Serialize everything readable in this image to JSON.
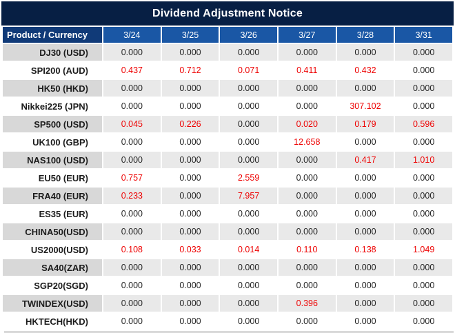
{
  "title": "Dividend Adjustment Notice",
  "table": {
    "product_header": "Product / Currency",
    "date_headers": [
      "3/24",
      "3/25",
      "3/26",
      "3/27",
      "3/28",
      "3/31"
    ],
    "rows": [
      {
        "product": "DJ30 (USD)",
        "cells": [
          {
            "v": "0.000",
            "red": false
          },
          {
            "v": "0.000",
            "red": false
          },
          {
            "v": "0.000",
            "red": false
          },
          {
            "v": "0.000",
            "red": false
          },
          {
            "v": "0.000",
            "red": false
          },
          {
            "v": "0.000",
            "red": false
          }
        ]
      },
      {
        "product": "SPI200 (AUD)",
        "cells": [
          {
            "v": "0.437",
            "red": true
          },
          {
            "v": "0.712",
            "red": true
          },
          {
            "v": "0.071",
            "red": true
          },
          {
            "v": "0.411",
            "red": true
          },
          {
            "v": "0.432",
            "red": true
          },
          {
            "v": "0.000",
            "red": false
          }
        ]
      },
      {
        "product": "HK50 (HKD)",
        "cells": [
          {
            "v": "0.000",
            "red": false
          },
          {
            "v": "0.000",
            "red": false
          },
          {
            "v": "0.000",
            "red": false
          },
          {
            "v": "0.000",
            "red": false
          },
          {
            "v": "0.000",
            "red": false
          },
          {
            "v": "0.000",
            "red": false
          }
        ]
      },
      {
        "product": "Nikkei225 (JPN)",
        "cells": [
          {
            "v": "0.000",
            "red": false
          },
          {
            "v": "0.000",
            "red": false
          },
          {
            "v": "0.000",
            "red": false
          },
          {
            "v": "0.000",
            "red": false
          },
          {
            "v": "307.102",
            "red": true
          },
          {
            "v": "0.000",
            "red": false
          }
        ]
      },
      {
        "product": "SP500 (USD)",
        "cells": [
          {
            "v": "0.045",
            "red": true
          },
          {
            "v": "0.226",
            "red": true
          },
          {
            "v": "0.000",
            "red": false
          },
          {
            "v": "0.020",
            "red": true
          },
          {
            "v": "0.179",
            "red": true
          },
          {
            "v": "0.596",
            "red": true
          }
        ]
      },
      {
        "product": "UK100 (GBP)",
        "cells": [
          {
            "v": "0.000",
            "red": false
          },
          {
            "v": "0.000",
            "red": false
          },
          {
            "v": "0.000",
            "red": false
          },
          {
            "v": "12.658",
            "red": true
          },
          {
            "v": "0.000",
            "red": false
          },
          {
            "v": "0.000",
            "red": false
          }
        ]
      },
      {
        "product": "NAS100 (USD)",
        "cells": [
          {
            "v": "0.000",
            "red": false
          },
          {
            "v": "0.000",
            "red": false
          },
          {
            "v": "0.000",
            "red": false
          },
          {
            "v": "0.000",
            "red": false
          },
          {
            "v": "0.417",
            "red": true
          },
          {
            "v": "1.010",
            "red": true
          }
        ]
      },
      {
        "product": "EU50 (EUR)",
        "cells": [
          {
            "v": "0.757",
            "red": true
          },
          {
            "v": "0.000",
            "red": false
          },
          {
            "v": "2.559",
            "red": true
          },
          {
            "v": "0.000",
            "red": false
          },
          {
            "v": "0.000",
            "red": false
          },
          {
            "v": "0.000",
            "red": false
          }
        ]
      },
      {
        "product": "FRA40 (EUR)",
        "cells": [
          {
            "v": "0.233",
            "red": true
          },
          {
            "v": "0.000",
            "red": false
          },
          {
            "v": "7.957",
            "red": true
          },
          {
            "v": "0.000",
            "red": false
          },
          {
            "v": "0.000",
            "red": false
          },
          {
            "v": "0.000",
            "red": false
          }
        ]
      },
      {
        "product": "ES35 (EUR)",
        "cells": [
          {
            "v": "0.000",
            "red": false
          },
          {
            "v": "0.000",
            "red": false
          },
          {
            "v": "0.000",
            "red": false
          },
          {
            "v": "0.000",
            "red": false
          },
          {
            "v": "0.000",
            "red": false
          },
          {
            "v": "0.000",
            "red": false
          }
        ]
      },
      {
        "product": "CHINA50(USD)",
        "cells": [
          {
            "v": "0.000",
            "red": false
          },
          {
            "v": "0.000",
            "red": false
          },
          {
            "v": "0.000",
            "red": false
          },
          {
            "v": "0.000",
            "red": false
          },
          {
            "v": "0.000",
            "red": false
          },
          {
            "v": "0.000",
            "red": false
          }
        ]
      },
      {
        "product": "US2000(USD)",
        "cells": [
          {
            "v": "0.108",
            "red": true
          },
          {
            "v": "0.033",
            "red": true
          },
          {
            "v": "0.014",
            "red": true
          },
          {
            "v": "0.110",
            "red": true
          },
          {
            "v": "0.138",
            "red": true
          },
          {
            "v": "1.049",
            "red": true
          }
        ]
      },
      {
        "product": "SA40(ZAR)",
        "cells": [
          {
            "v": "0.000",
            "red": false
          },
          {
            "v": "0.000",
            "red": false
          },
          {
            "v": "0.000",
            "red": false
          },
          {
            "v": "0.000",
            "red": false
          },
          {
            "v": "0.000",
            "red": false
          },
          {
            "v": "0.000",
            "red": false
          }
        ]
      },
      {
        "product": "SGP20(SGD)",
        "cells": [
          {
            "v": "0.000",
            "red": false
          },
          {
            "v": "0.000",
            "red": false
          },
          {
            "v": "0.000",
            "red": false
          },
          {
            "v": "0.000",
            "red": false
          },
          {
            "v": "0.000",
            "red": false
          },
          {
            "v": "0.000",
            "red": false
          }
        ]
      },
      {
        "product": "TWINDEX(USD)",
        "cells": [
          {
            "v": "0.000",
            "red": false
          },
          {
            "v": "0.000",
            "red": false
          },
          {
            "v": "0.000",
            "red": false
          },
          {
            "v": "0.396",
            "red": true
          },
          {
            "v": "0.000",
            "red": false
          },
          {
            "v": "0.000",
            "red": false
          }
        ]
      },
      {
        "product": "HKTECH(HKD)",
        "cells": [
          {
            "v": "0.000",
            "red": false
          },
          {
            "v": "0.000",
            "red": false
          },
          {
            "v": "0.000",
            "red": false
          },
          {
            "v": "0.000",
            "red": false
          },
          {
            "v": "0.000",
            "red": false
          },
          {
            "v": "0.000",
            "red": false
          }
        ]
      }
    ]
  },
  "colors": {
    "title_bg": "#071f44",
    "product_header_bg": "#103a78",
    "date_header_bg": "#1a57a5",
    "gray_row_product_bg": "#d8d8d8",
    "gray_row_value_bg": "#e9e9e9",
    "value_text": "#242424",
    "value_red": "#ee0202"
  }
}
